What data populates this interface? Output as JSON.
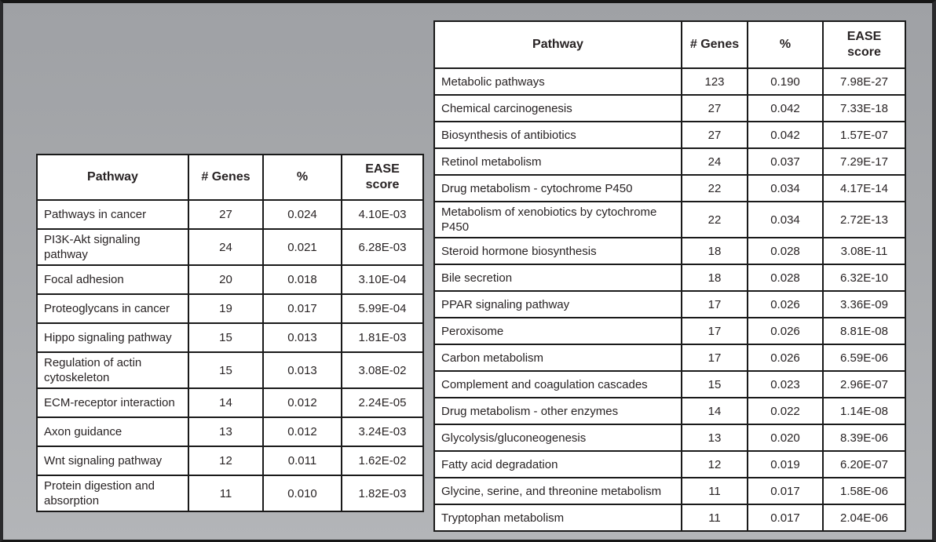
{
  "colors": {
    "table_border": "#1a1a1a",
    "table_background": "#ffffff",
    "text": "#282324",
    "page_background_top": "#9fa1a5",
    "page_background_bottom": "#b3b5b8",
    "frame_border": "#161616"
  },
  "left_table": {
    "headers": [
      "Pathway",
      "# Genes",
      "%",
      "EASE\nscore"
    ],
    "rows": [
      [
        "Pathways in cancer",
        "27",
        "0.024",
        "4.10E-03"
      ],
      [
        "PI3K-Akt signaling pathway",
        "24",
        "0.021",
        "6.28E-03"
      ],
      [
        "Focal adhesion",
        "20",
        "0.018",
        "3.10E-04"
      ],
      [
        "Proteoglycans in cancer",
        "19",
        "0.017",
        "5.99E-04"
      ],
      [
        "Hippo signaling pathway",
        "15",
        "0.013",
        "1.81E-03"
      ],
      [
        "Regulation of actin cytoskeleton",
        "15",
        "0.013",
        "3.08E-02"
      ],
      [
        "ECM-receptor interaction",
        "14",
        "0.012",
        "2.24E-05"
      ],
      [
        "Axon guidance",
        "13",
        "0.012",
        "3.24E-03"
      ],
      [
        "Wnt signaling pathway",
        "12",
        "0.011",
        "1.62E-02"
      ],
      [
        "Protein digestion and absorption",
        "11",
        "0.010",
        "1.82E-03"
      ]
    ]
  },
  "right_table": {
    "headers": [
      "Pathway",
      "# Genes",
      "%",
      "EASE\nscore"
    ],
    "rows": [
      [
        "Metabolic pathways",
        "123",
        "0.190",
        "7.98E-27"
      ],
      [
        "Chemical carcinogenesis",
        "27",
        "0.042",
        "7.33E-18"
      ],
      [
        "Biosynthesis of antibiotics",
        "27",
        "0.042",
        "1.57E-07"
      ],
      [
        "Retinol metabolism",
        "24",
        "0.037",
        "7.29E-17"
      ],
      [
        "Drug metabolism - cytochrome P450",
        "22",
        "0.034",
        "4.17E-14"
      ],
      [
        "Metabolism of xenobiotics by cytochrome P450",
        "22",
        "0.034",
        "2.72E-13"
      ],
      [
        "Steroid hormone biosynthesis",
        "18",
        "0.028",
        "3.08E-11"
      ],
      [
        "Bile secretion",
        "18",
        "0.028",
        "6.32E-10"
      ],
      [
        "PPAR signaling pathway",
        "17",
        "0.026",
        "3.36E-09"
      ],
      [
        "Peroxisome",
        "17",
        "0.026",
        "8.81E-08"
      ],
      [
        "Carbon metabolism",
        "17",
        "0.026",
        "6.59E-06"
      ],
      [
        "Complement and coagulation cascades",
        "15",
        "0.023",
        "2.96E-07"
      ],
      [
        "Drug metabolism - other enzymes",
        "14",
        "0.022",
        "1.14E-08"
      ],
      [
        "Glycolysis/gluconeogenesis",
        "13",
        "0.020",
        "8.39E-06"
      ],
      [
        "Fatty acid degradation",
        "12",
        "0.019",
        "6.20E-07"
      ],
      [
        "Glycine, serine, and threonine metabolism",
        "11",
        "0.017",
        "1.58E-06"
      ],
      [
        "Tryptophan metabolism",
        "11",
        "0.017",
        "2.04E-06"
      ]
    ]
  },
  "chart_data": [
    {
      "type": "table",
      "title": "",
      "columns": [
        "Pathway",
        "# Genes",
        "%",
        "EASE score"
      ],
      "rows_ref": "left_table.rows"
    },
    {
      "type": "table",
      "title": "",
      "columns": [
        "Pathway",
        "# Genes",
        "%",
        "EASE score"
      ],
      "rows_ref": "right_table.rows"
    }
  ]
}
